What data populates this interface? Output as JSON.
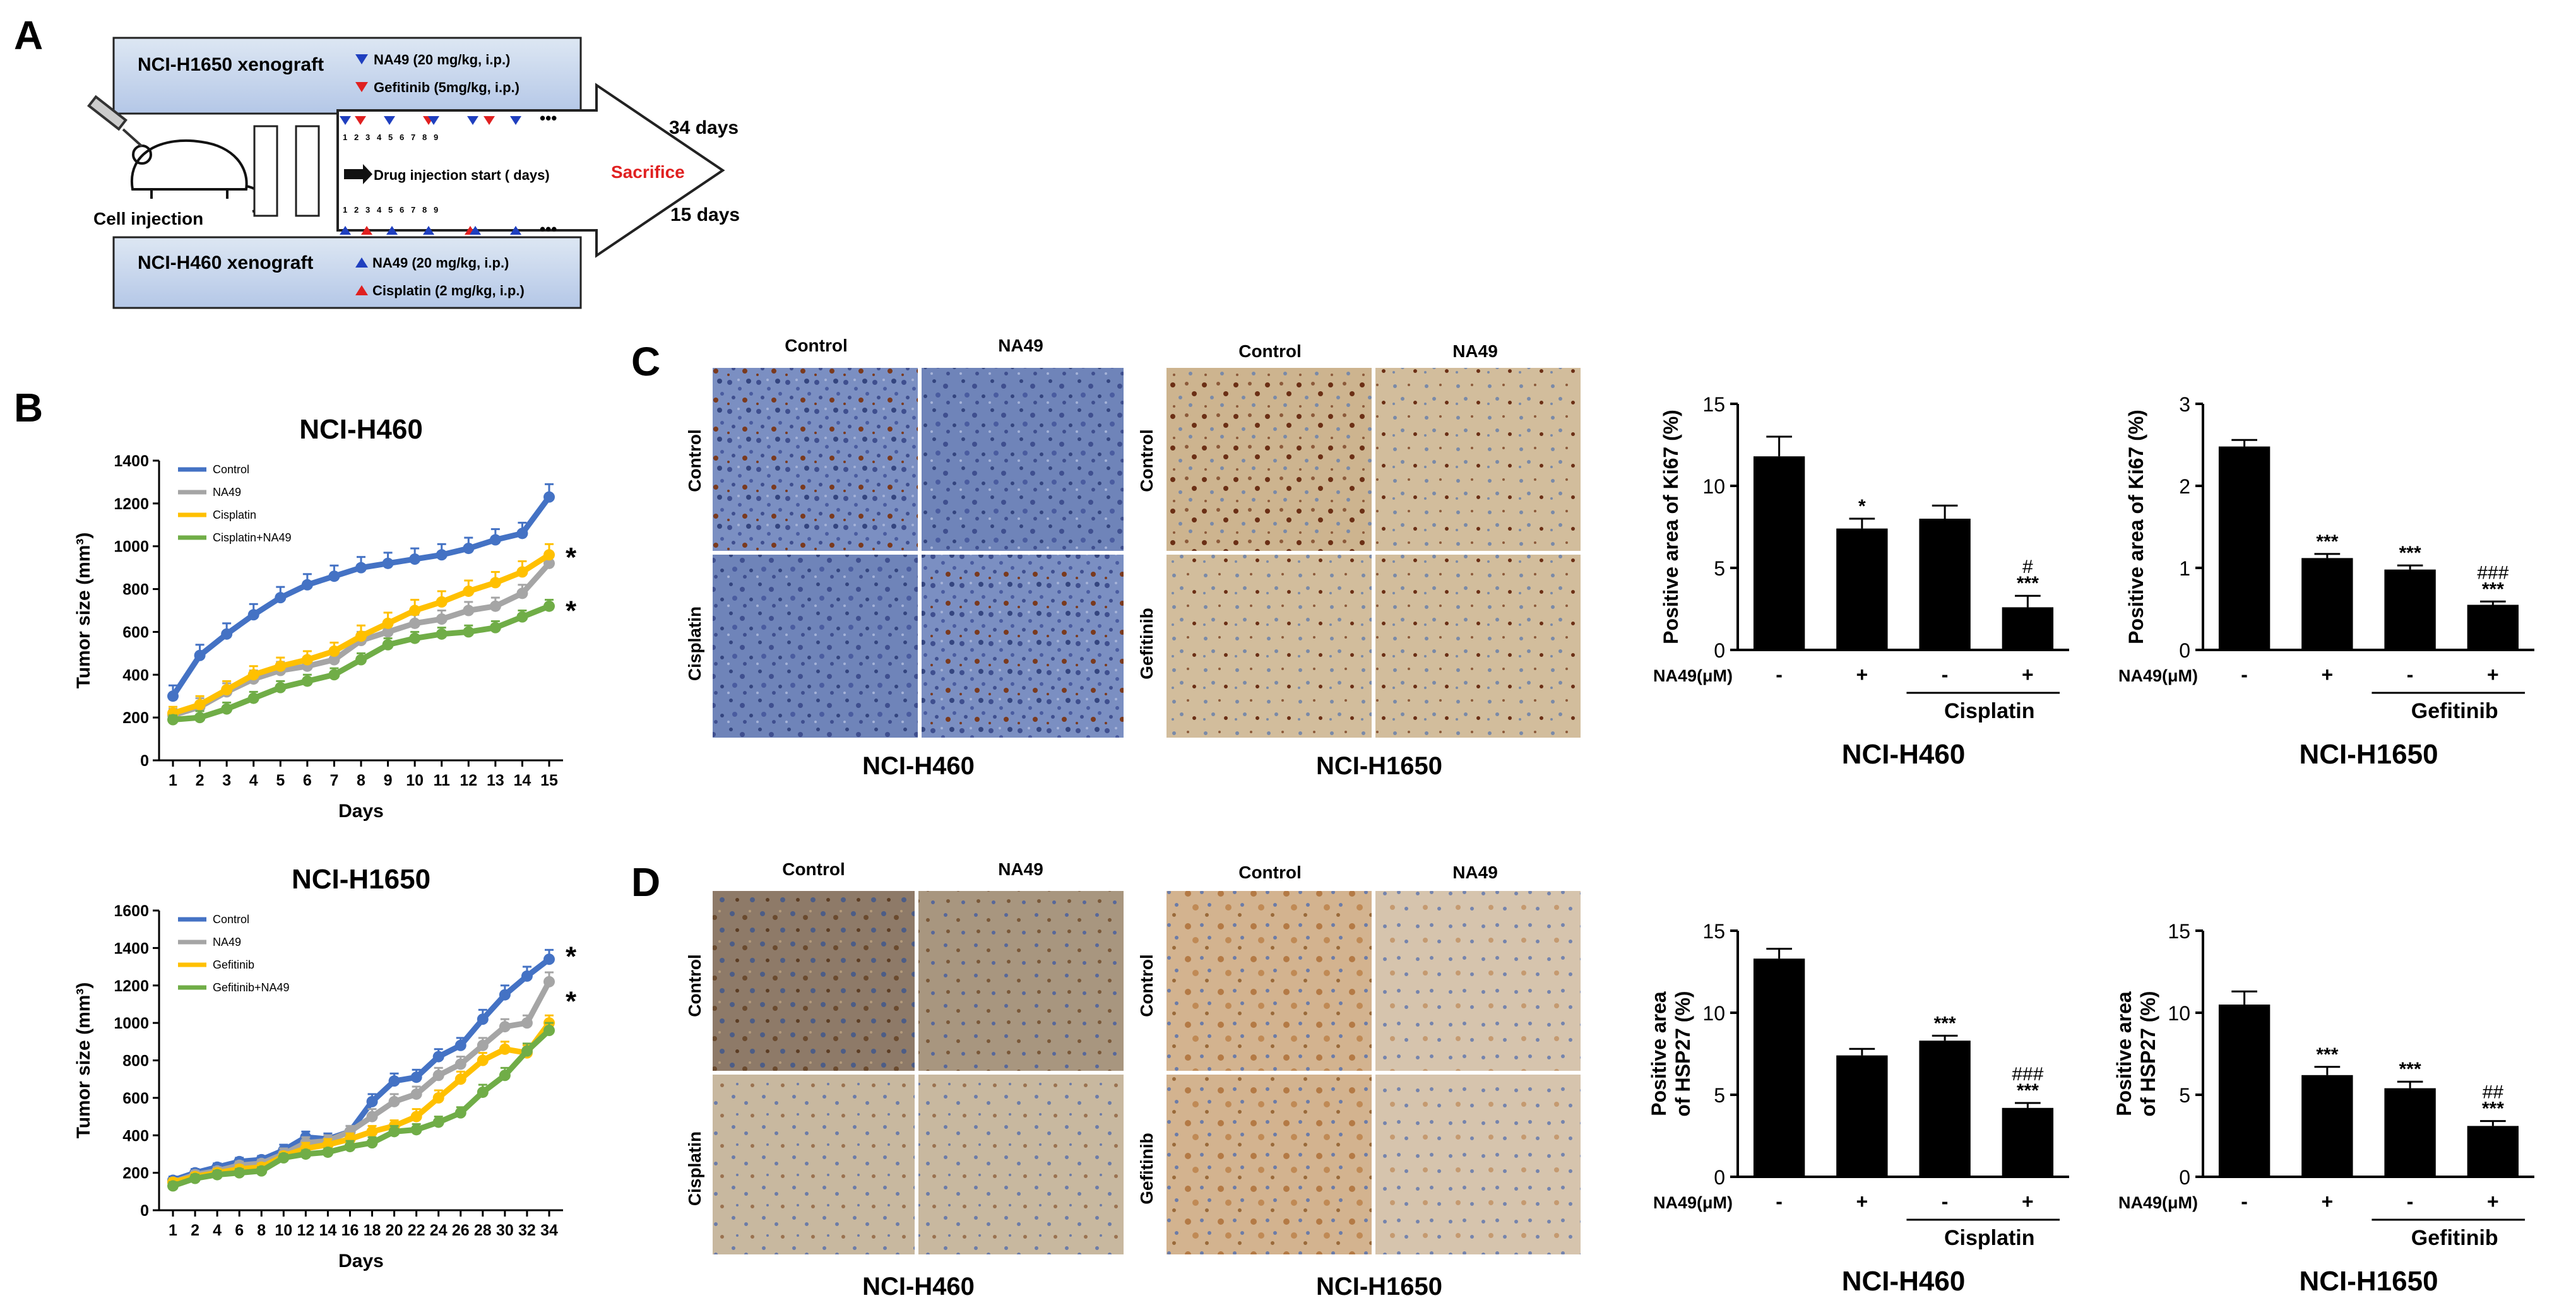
{
  "panel_letters": {
    "a": "A",
    "b": "B",
    "c": "C",
    "d": "D"
  },
  "colors": {
    "blue": "#4472c4",
    "gray": "#a5a5a5",
    "yellow": "#ffc000",
    "green": "#70ad47",
    "marker_blue": "#1f3fbf",
    "marker_red": "#e02020",
    "sacrifice": "#e02020",
    "box_fill_top": "#dde7f3",
    "box_fill_bottom": "#b4c7e7",
    "ihc_blue": "#6f84b9",
    "ihc_tan": "#cdb48f",
    "ihc_brown_dot": "#7a3a1e"
  },
  "schematic": {
    "h1650": {
      "title": "NCI-H1650  xenograft",
      "legend1": "NA49 (20 mg/kg, i.p.)",
      "legend2": "Gefitinib (5mg/kg, i.p.)"
    },
    "h460": {
      "title": "NCI-H460  xenograft",
      "legend1": "NA49 (20 mg/kg, i.p.)",
      "legend2": "Cisplatin (2 mg/kg, i.p.)"
    },
    "cell_injection": "Cell injection",
    "drug_start": "Drug injection start ( days)",
    "sacrifice": "Sacrifice",
    "days_top": "34 days",
    "days_bottom": "15 days",
    "ellipsis": "•••",
    "day_numbers": [
      "1",
      "2",
      "3",
      "4",
      "5",
      "6",
      "7",
      "8",
      "9"
    ]
  },
  "ihc": {
    "col_control": "Control",
    "col_na49": "NA49",
    "row_control": "Control",
    "row_cisplatin": "Cisplatin",
    "row_gefitinib": "Gefitinib",
    "label_h460": "NCI-H460",
    "label_h1650": "NCI-H1650"
  },
  "chart_data": [
    {
      "type": "line",
      "panel": "B-top",
      "title": "NCI-H460",
      "xlabel": "Days",
      "ylabel": "Tumor size (mm³)",
      "ylim": [
        0,
        1400
      ],
      "yticks": [
        0,
        200,
        400,
        600,
        800,
        1000,
        1200,
        1400
      ],
      "x": [
        1,
        2,
        3,
        4,
        5,
        6,
        7,
        8,
        9,
        10,
        11,
        12,
        13,
        14,
        15
      ],
      "xticks": [
        "1",
        "2",
        "3",
        "4",
        "5",
        "6",
        "7",
        "8",
        "9",
        "10",
        "11",
        "12",
        "13",
        "14",
        "15"
      ],
      "legend_position": "top-left",
      "series": [
        {
          "name": "Control",
          "color": "#4472c4",
          "values": [
            300,
            490,
            590,
            680,
            760,
            820,
            860,
            900,
            920,
            940,
            960,
            990,
            1030,
            1060,
            1230
          ],
          "err": [
            50,
            50,
            50,
            50,
            50,
            50,
            50,
            50,
            50,
            50,
            50,
            50,
            50,
            50,
            60
          ]
        },
        {
          "name": "NA49",
          "color": "#a5a5a5",
          "values": [
            210,
            250,
            320,
            380,
            420,
            440,
            470,
            560,
            600,
            640,
            660,
            700,
            720,
            780,
            920
          ],
          "err": [
            30,
            40,
            40,
            40,
            40,
            40,
            40,
            40,
            40,
            40,
            40,
            40,
            40,
            40,
            50
          ]
        },
        {
          "name": "Cisplatin",
          "color": "#ffc000",
          "values": [
            220,
            260,
            330,
            400,
            440,
            470,
            510,
            580,
            640,
            700,
            740,
            790,
            830,
            880,
            960
          ],
          "err": [
            30,
            40,
            40,
            40,
            40,
            40,
            40,
            50,
            50,
            50,
            50,
            50,
            50,
            50,
            50
          ]
        },
        {
          "name": "Cisplatin+NA49",
          "color": "#70ad47",
          "values": [
            190,
            200,
            240,
            290,
            340,
            370,
            400,
            470,
            540,
            570,
            590,
            600,
            620,
            670,
            720
          ],
          "err": [
            20,
            30,
            30,
            30,
            30,
            30,
            30,
            30,
            30,
            30,
            30,
            30,
            30,
            30,
            30
          ]
        }
      ],
      "annotations": [
        "*",
        "*"
      ]
    },
    {
      "type": "line",
      "panel": "B-bottom",
      "title": "NCI-H1650",
      "xlabel": "Days",
      "ylabel": "Tumor size (mm³)",
      "ylim": [
        0,
        1600
      ],
      "yticks": [
        0,
        200,
        400,
        600,
        800,
        1000,
        1200,
        1400,
        1600
      ],
      "x": [
        1,
        2,
        4,
        6,
        8,
        10,
        12,
        14,
        16,
        18,
        20,
        22,
        24,
        26,
        28,
        30,
        32,
        34
      ],
      "xticks": [
        "1",
        "2",
        "4",
        "6",
        "8",
        "10",
        "12",
        "14",
        "16",
        "18",
        "20",
        "22",
        "24",
        "26",
        "28",
        "30",
        "32",
        "34"
      ],
      "legend_position": "top-left",
      "series": [
        {
          "name": "Control",
          "color": "#4472c4",
          "values": [
            160,
            200,
            230,
            260,
            270,
            320,
            390,
            380,
            420,
            580,
            690,
            710,
            820,
            880,
            1020,
            1150,
            1250,
            1340
          ],
          "err": [
            20,
            20,
            20,
            20,
            20,
            30,
            30,
            30,
            30,
            40,
            40,
            40,
            40,
            40,
            50,
            50,
            50,
            50
          ]
        },
        {
          "name": "NA49",
          "color": "#a5a5a5",
          "values": [
            150,
            190,
            210,
            240,
            250,
            300,
            360,
            370,
            420,
            500,
            580,
            620,
            720,
            780,
            880,
            980,
            1000,
            1220
          ],
          "err": [
            20,
            20,
            20,
            20,
            20,
            30,
            30,
            30,
            30,
            40,
            40,
            40,
            40,
            40,
            40,
            40,
            40,
            50
          ]
        },
        {
          "name": "Gefitinib",
          "color": "#ffc000",
          "values": [
            150,
            180,
            200,
            220,
            230,
            290,
            330,
            350,
            380,
            420,
            450,
            500,
            600,
            700,
            800,
            860,
            840,
            1000
          ],
          "err": [
            20,
            20,
            20,
            20,
            20,
            20,
            30,
            30,
            30,
            30,
            30,
            40,
            40,
            40,
            40,
            40,
            40,
            40
          ]
        },
        {
          "name": "Gefitinib+NA49",
          "color": "#70ad47",
          "values": [
            130,
            170,
            190,
            200,
            210,
            280,
            300,
            310,
            340,
            360,
            420,
            430,
            470,
            520,
            630,
            720,
            850,
            960
          ],
          "err": [
            20,
            20,
            20,
            20,
            20,
            20,
            20,
            20,
            30,
            30,
            30,
            30,
            30,
            30,
            40,
            40,
            40,
            40
          ]
        }
      ],
      "annotations": [
        "*",
        "*"
      ]
    },
    {
      "type": "bar",
      "panel": "C-left",
      "cell_line": "NCI-H460",
      "ylabel": "Positive area of Ki67 (%)",
      "ylim": [
        0,
        15
      ],
      "yticks": [
        0,
        5,
        10,
        15
      ],
      "row_label": "NA49(μM)",
      "categories": [
        "-",
        "+",
        "-",
        "+"
      ],
      "group_label": "Cisplatin",
      "values": [
        11.8,
        7.4,
        8.0,
        2.6
      ],
      "err": [
        1.2,
        0.6,
        0.8,
        0.7
      ],
      "sig": [
        "",
        "*",
        "",
        "***"
      ],
      "sig2": [
        "",
        "",
        "",
        "#"
      ]
    },
    {
      "type": "bar",
      "panel": "C-right",
      "cell_line": "NCI-H1650",
      "ylabel": "Positive area of Ki67 (%)",
      "ylim": [
        0,
        3
      ],
      "yticks": [
        0,
        1,
        2,
        3
      ],
      "row_label": "NA49(μM)",
      "categories": [
        "-",
        "+",
        "-",
        "+"
      ],
      "group_label": "Gefitinib",
      "values": [
        2.48,
        1.12,
        0.98,
        0.55
      ],
      "err": [
        0.08,
        0.05,
        0.05,
        0.04
      ],
      "sig": [
        "",
        "***",
        "***",
        "***"
      ],
      "sig2": [
        "",
        "",
        "",
        "###"
      ]
    },
    {
      "type": "bar",
      "panel": "D-left",
      "cell_line": "NCI-H460",
      "ylabel": "Positive area of HSP27 (%)",
      "ylabel_lines": [
        "Positive area",
        "of HSP27 (%)"
      ],
      "ylim": [
        0,
        15
      ],
      "yticks": [
        0,
        5,
        10,
        15
      ],
      "row_label": "NA49(μM)",
      "categories": [
        "-",
        "+",
        "-",
        "+"
      ],
      "group_label": "Cisplatin",
      "values": [
        13.3,
        7.4,
        8.3,
        4.2
      ],
      "err": [
        0.6,
        0.4,
        0.3,
        0.3
      ],
      "sig": [
        "",
        "",
        "***",
        "***"
      ],
      "sig2": [
        "",
        "",
        "",
        "###"
      ]
    },
    {
      "type": "bar",
      "panel": "D-right",
      "cell_line": "NCI-H1650",
      "ylabel": "Positive area of HSP27 (%)",
      "ylabel_lines": [
        "Positive area",
        "of HSP27 (%)"
      ],
      "ylim": [
        0,
        15
      ],
      "yticks": [
        0,
        5,
        10,
        15
      ],
      "row_label": "NA49(μM)",
      "categories": [
        "-",
        "+",
        "-",
        "+"
      ],
      "group_label": "Gefitinib",
      "values": [
        10.5,
        6.2,
        5.4,
        3.1
      ],
      "err": [
        0.8,
        0.5,
        0.4,
        0.3
      ],
      "sig": [
        "",
        "***",
        "***",
        "***"
      ],
      "sig2": [
        "",
        "",
        "",
        "##"
      ]
    }
  ]
}
